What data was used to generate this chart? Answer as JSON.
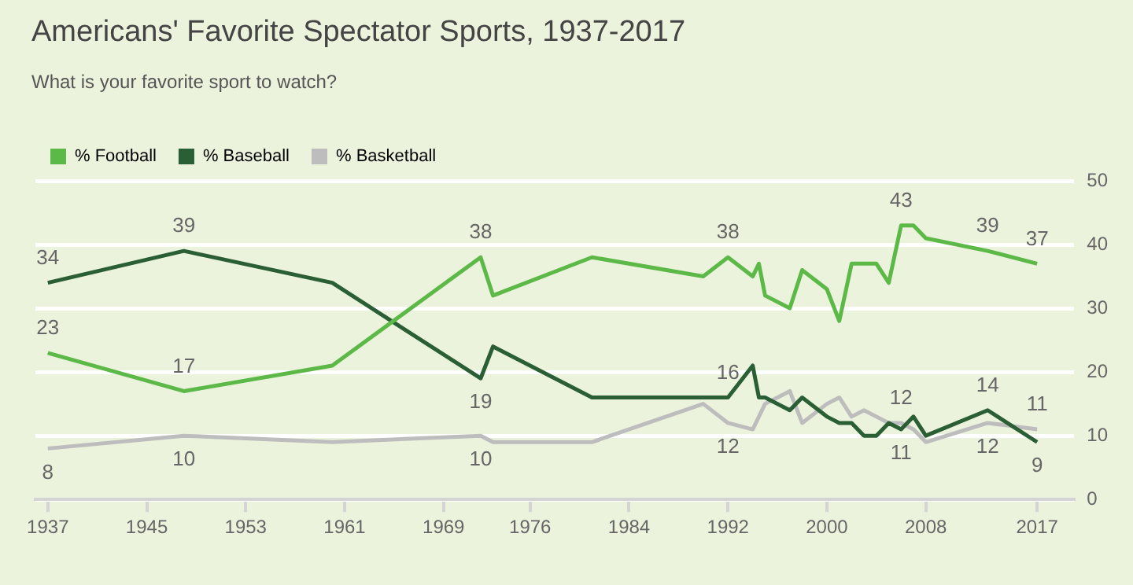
{
  "chart_data": {
    "type": "line",
    "title": "Americans' Favorite Spectator Sports, 1937-2017",
    "subtitle": "What is your favorite sport to watch?",
    "series": [
      {
        "name": "% Football",
        "color": "#5cb947",
        "x": [
          1937,
          1948,
          1960,
          1972,
          1973,
          1981,
          1990,
          1992,
          1994,
          1994.5,
          1995,
          1997,
          1998,
          2000,
          2001,
          2002,
          2004,
          2005,
          2006,
          2007,
          2008,
          2013,
          2017
        ],
        "values": [
          23,
          17,
          21,
          38,
          32,
          38,
          35,
          38,
          35,
          37,
          32,
          30,
          36,
          33,
          28,
          37,
          37,
          34,
          43,
          43,
          41,
          39,
          37
        ]
      },
      {
        "name": "% Baseball",
        "color": "#2a5e34",
        "x": [
          1937,
          1948,
          1960,
          1972,
          1973,
          1981,
          1992,
          1994,
          1994.5,
          1995,
          1997,
          1998,
          2000,
          2001,
          2002,
          2003,
          2004,
          2005,
          2006,
          2007,
          2008,
          2013,
          2017
        ],
        "values": [
          34,
          39,
          34,
          19,
          24,
          16,
          16,
          21,
          16,
          16,
          14,
          16,
          13,
          12,
          12,
          10,
          10,
          12,
          11,
          13,
          10,
          14,
          9
        ]
      },
      {
        "name": "% Basketball",
        "color": "#bdbdbd",
        "x": [
          1937,
          1948,
          1960,
          1972,
          1973,
          1981,
          1990,
          1992,
          1994,
          1994.5,
          1995,
          1997,
          1998,
          2000,
          2001,
          2002,
          2003,
          2004,
          2005,
          2006,
          2007,
          2008,
          2013,
          2017
        ],
        "values": [
          8,
          10,
          9,
          10,
          9,
          9,
          15,
          12,
          11,
          13,
          15,
          17,
          12,
          15,
          16,
          13,
          14,
          13,
          12,
          12,
          11,
          9,
          12,
          11
        ]
      }
    ],
    "xlim": [
      1936,
      2020
    ],
    "xticks": [
      1937,
      1945,
      1953,
      1961,
      1969,
      1976,
      1984,
      1992,
      2000,
      2008,
      2017
    ],
    "ylim": [
      0,
      50
    ],
    "yticks": [
      0,
      10,
      20,
      30,
      40,
      50
    ],
    "grid": "y",
    "legend": "top left",
    "marker": "none",
    "line_style": "solid",
    "annotations": [
      {
        "text": "23",
        "x": 1937,
        "y": 23
      },
      {
        "text": "17",
        "x": 1948,
        "y": 17
      },
      {
        "text": "38",
        "x": 1972,
        "y": 38
      },
      {
        "text": "38",
        "x": 1992,
        "y": 38
      },
      {
        "text": "43",
        "x": 2006,
        "y": 43
      },
      {
        "text": "39",
        "x": 2013,
        "y": 39
      },
      {
        "text": "37",
        "x": 2017,
        "y": 37
      },
      {
        "text": "34",
        "x": 1937,
        "y": 34
      },
      {
        "text": "39",
        "x": 1948,
        "y": 39
      },
      {
        "text": "19",
        "x": 1972,
        "y": 19
      },
      {
        "text": "16",
        "x": 1992,
        "y": 16
      },
      {
        "text": "11",
        "x": 2006,
        "y": 11
      },
      {
        "text": "14",
        "x": 2013,
        "y": 14
      },
      {
        "text": "9",
        "x": 2017,
        "y": 9
      },
      {
        "text": "8",
        "x": 1937,
        "y": 8
      },
      {
        "text": "10",
        "x": 1948,
        "y": 10
      },
      {
        "text": "10",
        "x": 1972,
        "y": 10
      },
      {
        "text": "12",
        "x": 1992,
        "y": 12
      },
      {
        "text": "12",
        "x": 2006,
        "y": 12
      },
      {
        "text": "12",
        "x": 2013,
        "y": 12
      },
      {
        "text": "11",
        "x": 2017,
        "y": 11
      }
    ]
  }
}
